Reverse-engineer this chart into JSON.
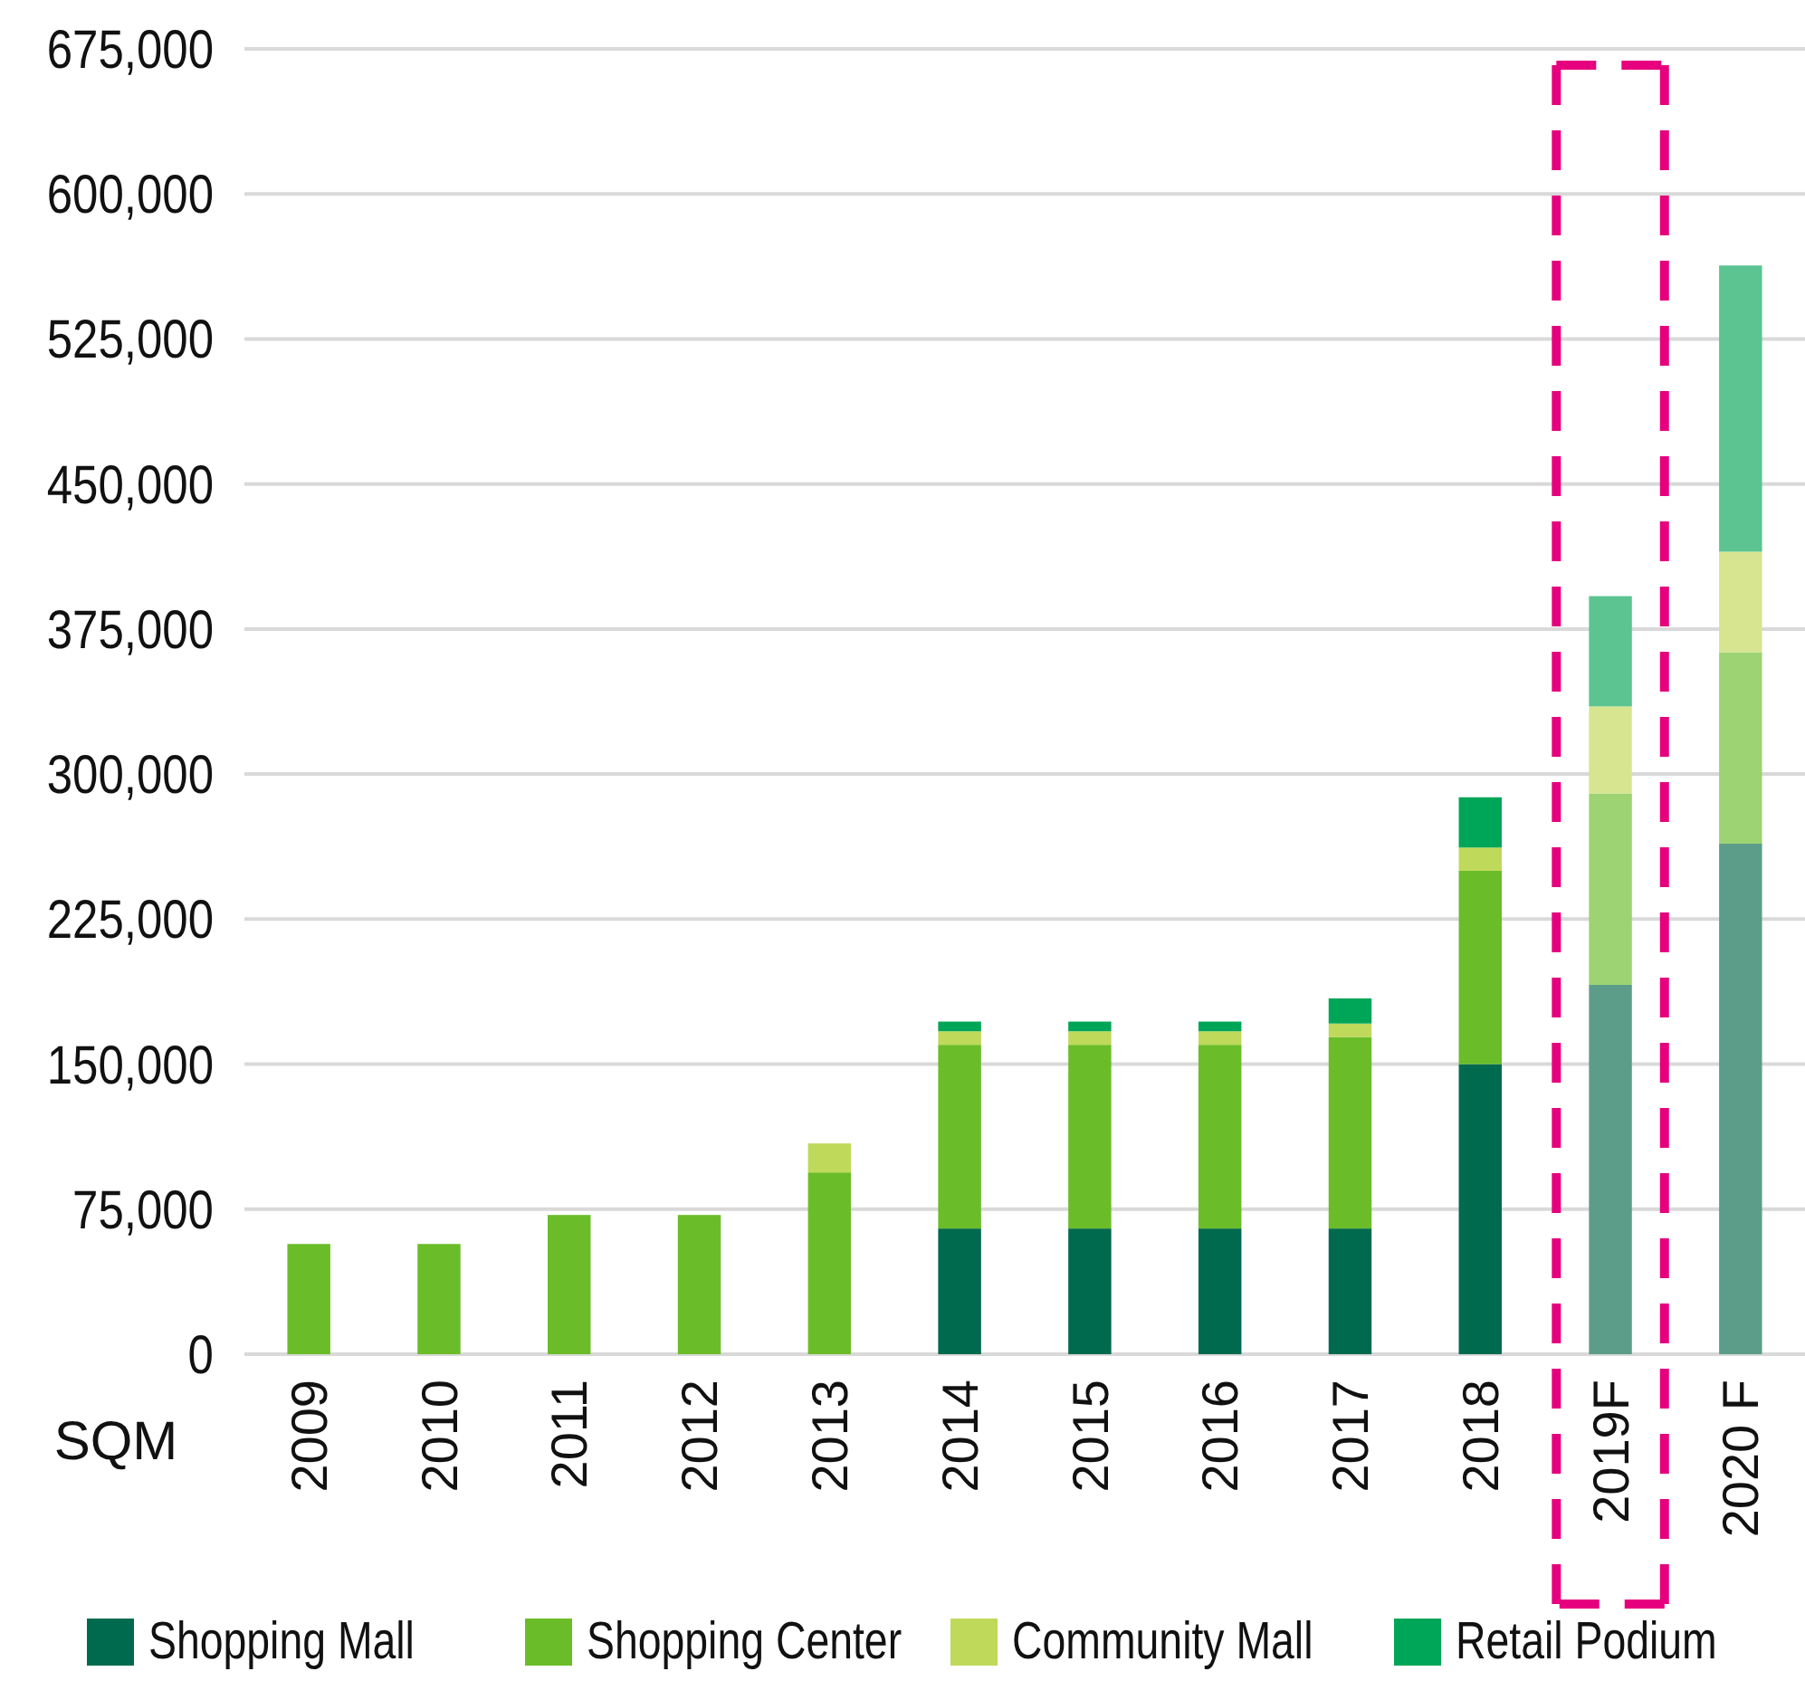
{
  "chart_data": {
    "type": "bar",
    "stacked": true,
    "ylabel": "SQM",
    "categories": [
      "2009",
      "2010",
      "2011",
      "2012",
      "2013",
      "2014",
      "2015",
      "2016",
      "2017",
      "2018",
      "2019F",
      "2020 F"
    ],
    "series": [
      {
        "name": "Shopping Mall",
        "color": "#006a4e",
        "colors": [
          null,
          null,
          null,
          null,
          null,
          "#006a4e",
          "#006a4e",
          "#006a4e",
          "#006a4e",
          "#006a4e",
          "#5c9d8a",
          "#5c9d8a"
        ],
        "values": [
          null,
          null,
          null,
          null,
          null,
          65000,
          65000,
          65000,
          65000,
          150000,
          191000,
          264000
        ]
      },
      {
        "name": "Shopping Center",
        "color": "#6abd28",
        "colors": [
          "#6abd28",
          "#6abd28",
          "#6abd28",
          "#6abd28",
          "#6abd28",
          "#6abd28",
          "#6abd28",
          "#6abd28",
          "#6abd28",
          "#6abd28",
          "#9dd372",
          "#9dd372"
        ],
        "values": [
          57000,
          57000,
          72000,
          72000,
          94000,
          95000,
          95000,
          95000,
          99000,
          100000,
          99000,
          99000
        ]
      },
      {
        "name": "Community Mall",
        "color": "#bfd95a",
        "colors": [
          null,
          null,
          null,
          null,
          "#bfd95a",
          "#bfd95a",
          "#bfd95a",
          "#bfd95a",
          "#bfd95a",
          "#bfd95a",
          "#d8e590",
          "#d8e590"
        ],
        "values": [
          null,
          null,
          null,
          null,
          15000,
          7000,
          7000,
          7000,
          7000,
          12000,
          45000,
          52000
        ]
      },
      {
        "name": "Retail Podium",
        "color": "#00a657",
        "colors": [
          null,
          null,
          null,
          null,
          null,
          "#00a657",
          "#00a657",
          "#00a657",
          "#00a657",
          "#00a657",
          "#5bc491",
          "#5bc491"
        ],
        "values": [
          null,
          null,
          null,
          null,
          null,
          5000,
          5000,
          5000,
          13000,
          26000,
          57000,
          148000
        ]
      }
    ],
    "ylim": [
      0,
      675000
    ],
    "yticks": [
      0,
      {
        "value": 75000,
        "label": "75,000"
      },
      {
        "value": 150000,
        "label": "150,000"
      },
      {
        "value": 225000,
        "label": "225,000"
      },
      {
        "value": 300000,
        "label": "300,000"
      },
      {
        "value": 375000,
        "label": "375,000"
      },
      {
        "value": 450000,
        "label": "450,000"
      },
      {
        "value": 525000,
        "label": "525,000"
      },
      {
        "value": 600000,
        "label": "600,000"
      },
      {
        "value": 675000,
        "label": "675,000"
      }
    ],
    "grid": "y",
    "legend": "bottom"
  }
}
